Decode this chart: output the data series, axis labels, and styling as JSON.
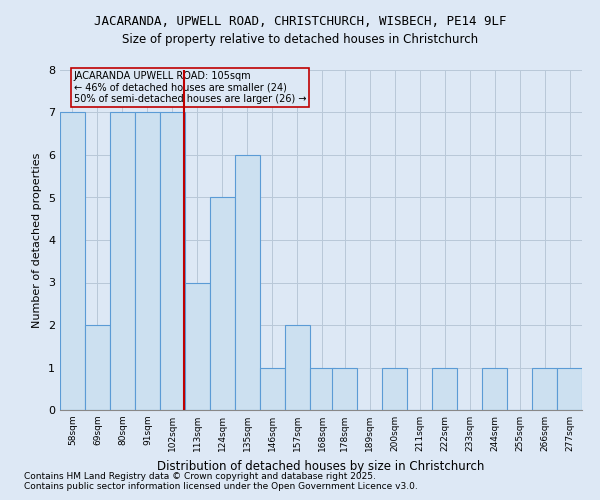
{
  "title1": "JACARANDA, UPWELL ROAD, CHRISTCHURCH, WISBECH, PE14 9LF",
  "title2": "Size of property relative to detached houses in Christchurch",
  "xlabel": "Distribution of detached houses by size in Christchurch",
  "ylabel": "Number of detached properties",
  "footnote1": "Contains HM Land Registry data © Crown copyright and database right 2025.",
  "footnote2": "Contains public sector information licensed under the Open Government Licence v3.0.",
  "annotation_line1": "JACARANDA UPWELL ROAD: 105sqm",
  "annotation_line2": "← 46% of detached houses are smaller (24)",
  "annotation_line3": "50% of semi-detached houses are larger (26) →",
  "bar_color": "#cce0f0",
  "bar_edge_color": "#5b9bd5",
  "ref_line_color": "#c00000",
  "ref_line_x": 107,
  "background_color": "#dde8f5",
  "categories": [
    58,
    69,
    80,
    91,
    102,
    113,
    124,
    135,
    146,
    157,
    168,
    178,
    189,
    200,
    211,
    222,
    233,
    244,
    255,
    266,
    277
  ],
  "values": [
    7,
    2,
    7,
    7,
    7,
    3,
    5,
    6,
    1,
    2,
    1,
    1,
    0,
    1,
    0,
    1,
    0,
    1,
    0,
    1,
    1
  ],
  "ylim": [
    0,
    8
  ],
  "yticks": [
    0,
    1,
    2,
    3,
    4,
    5,
    6,
    7,
    8
  ],
  "bin_width": 11
}
